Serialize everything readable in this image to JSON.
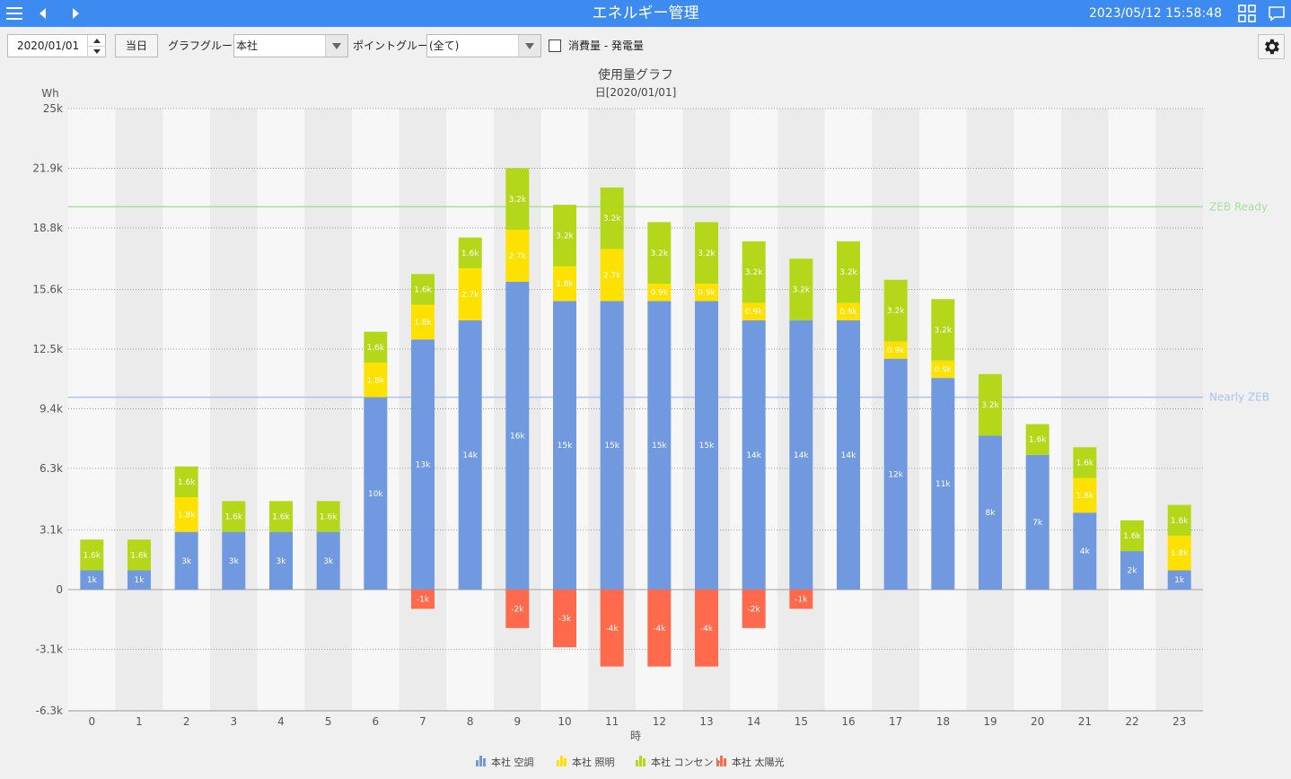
{
  "header": {
    "title": "エネルギー管理",
    "datetime": "2023/05/12 15:58:48"
  },
  "toolbar": {
    "date_value": "2020/01/01",
    "today_button": "当日",
    "graph_group_label": "グラフグループ:",
    "graph_group_value": "本社",
    "point_group_label": "ポイントグループ:",
    "point_group_value": "(全て)",
    "checkbox_label": "消費量 - 発電量",
    "checkbox_checked": false
  },
  "chart_data": {
    "type": "bar",
    "stacked": true,
    "title": "使用量グラフ",
    "subtitle": "日[2020/01/01]",
    "xlabel": "時",
    "ylabel": "Wh",
    "categories": [
      "0",
      "1",
      "2",
      "3",
      "4",
      "5",
      "6",
      "7",
      "8",
      "9",
      "10",
      "11",
      "12",
      "13",
      "14",
      "15",
      "16",
      "17",
      "18",
      "19",
      "20",
      "21",
      "22",
      "23"
    ],
    "ylim": [
      -6300,
      25000
    ],
    "yticks": [
      -6300,
      -3100,
      0,
      3100,
      6300,
      9400,
      12500,
      15600,
      18800,
      21900,
      25000
    ],
    "ytick_labels": [
      "-6.3k",
      "-3.1k",
      "0",
      "3.1k",
      "6.3k",
      "9.4k",
      "12.5k",
      "15.6k",
      "18.8k",
      "21.9k",
      "25k"
    ],
    "series": [
      {
        "name": "本社 空調",
        "color": "#7199e0",
        "values": [
          1000,
          1000,
          3000,
          3000,
          3000,
          3000,
          10000,
          13000,
          14000,
          16000,
          15000,
          15000,
          15000,
          15000,
          14000,
          14000,
          14000,
          12000,
          11000,
          8000,
          7000,
          4000,
          2000,
          1000
        ],
        "labels": [
          "1k",
          "1k",
          "3k",
          "3k",
          "3k",
          "3k",
          "10k",
          "13k",
          "14k",
          "16k",
          "15k",
          "15k",
          "15k",
          "15k",
          "14k",
          "14k",
          "14k",
          "12k",
          "11k",
          "8k",
          "7k",
          "4k",
          "2k",
          "1k"
        ]
      },
      {
        "name": "本社 照明",
        "color": "#ffe100",
        "values": [
          0,
          0,
          1800,
          0,
          0,
          0,
          1800,
          1800,
          2700,
          2700,
          1800,
          2700,
          900,
          900,
          900,
          0,
          900,
          900,
          900,
          0,
          0,
          1800,
          0,
          1800
        ],
        "labels": [
          "",
          "",
          "1.8k",
          "",
          "",
          "",
          "1.8k",
          "1.8k",
          "2.7k",
          "2.7k",
          "1.8k",
          "2.7k",
          "0.9k",
          "0.9k",
          "0.9k",
          "",
          "0.9k",
          "0.9k",
          "0.9k",
          "",
          "",
          "1.8k",
          "",
          "1.8k"
        ]
      },
      {
        "name": "本社 コンセント",
        "color": "#b4d819",
        "values": [
          1600,
          1600,
          1600,
          1600,
          1600,
          1600,
          1600,
          1600,
          1600,
          3200,
          3200,
          3200,
          3200,
          3200,
          3200,
          3200,
          3200,
          3200,
          3200,
          3200,
          1600,
          1600,
          1600,
          1600
        ],
        "labels": [
          "1.6k",
          "1.6k",
          "1.6k",
          "1.6k",
          "1.6k",
          "1.6k",
          "1.6k",
          "1.6k",
          "1.6k",
          "3.2k",
          "3.2k",
          "3.2k",
          "3.2k",
          "3.2k",
          "3.2k",
          "3.2k",
          "3.2k",
          "3.2k",
          "3.2k",
          "3.2k",
          "1.6k",
          "1.6k",
          "1.6k",
          "1.6k"
        ]
      },
      {
        "name": "本社 太陽光",
        "color": "#ff6a4d",
        "values": [
          0,
          0,
          0,
          0,
          0,
          0,
          0,
          -1000,
          0,
          -2000,
          -3000,
          -4000,
          -4000,
          -4000,
          -2000,
          -1000,
          0,
          0,
          0,
          0,
          0,
          0,
          0,
          0
        ],
        "labels": [
          "",
          "",
          "",
          "",
          "",
          "",
          "",
          "-1k",
          "",
          "-2k",
          "-3k",
          "-4k",
          "-4k",
          "-4k",
          "-2k",
          "-1k",
          "",
          "",
          "",
          "",
          "",
          "",
          "",
          ""
        ]
      }
    ],
    "reference_lines": [
      {
        "name": "ZEB Ready",
        "value": 19900,
        "color": "#a6e19a"
      },
      {
        "name": "Nearly ZEB",
        "value": 10000,
        "color": "#a9c3ee"
      }
    ],
    "grid": true,
    "legend_position": "bottom"
  }
}
